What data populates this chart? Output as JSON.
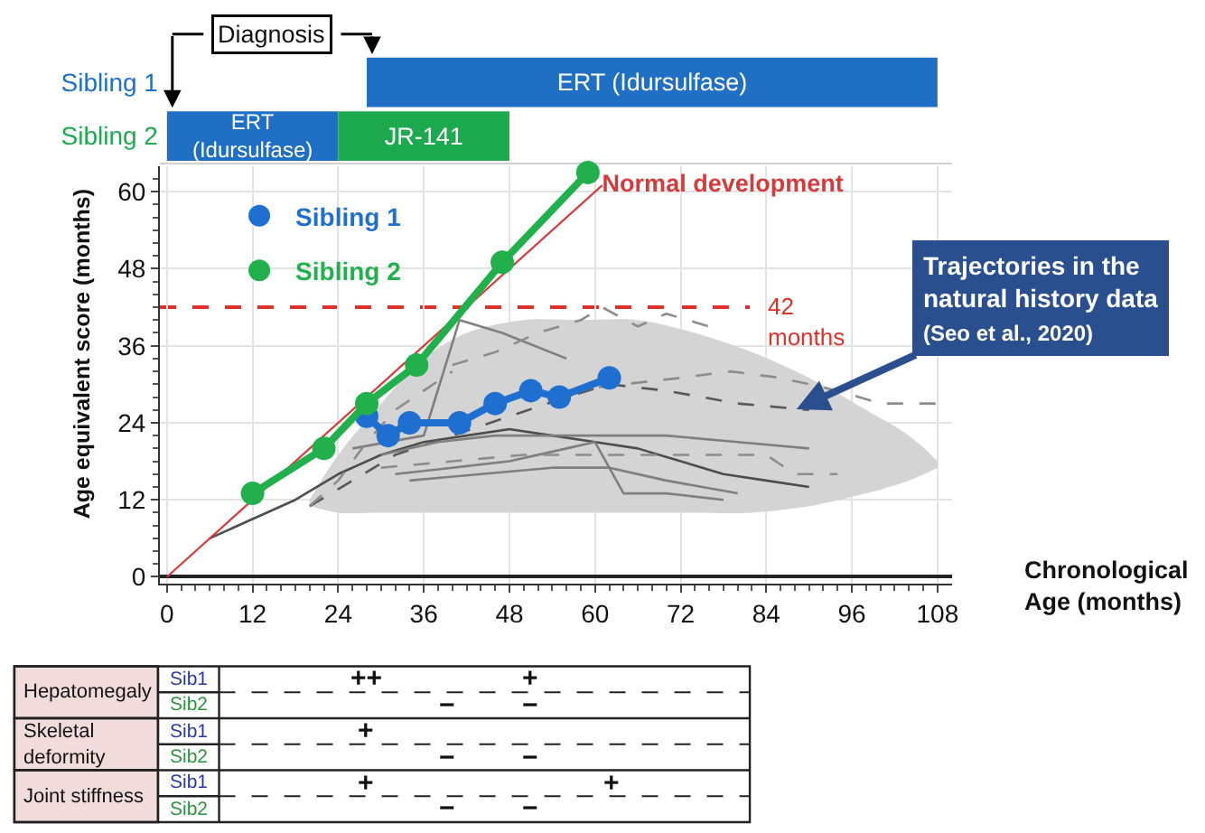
{
  "chart_data": [
    {
      "type": "bar",
      "orientation": "horizontal",
      "categories": [
        "Sibling 1",
        "Sibling 2"
      ],
      "series": [
        {
          "name": "ERT (Idursulfase)",
          "color": "#1f6fc5",
          "values": [
            80,
            24
          ],
          "base": [
            28,
            0
          ]
        },
        {
          "name": "JR-141",
          "color": "#1daa4f",
          "values": [
            null,
            24
          ],
          "base": [
            null,
            24
          ]
        }
      ],
      "xlim": [
        -1,
        110
      ],
      "tick_labels": "y",
      "annotations": [
        "Diagnosis"
      ]
    },
    {
      "type": "line",
      "xlabel": "Chronological Age (months)",
      "ylabel": "Age equivalent score (months)",
      "xlim": [
        -1,
        110
      ],
      "ylim": [
        -1,
        64
      ],
      "xticks": [
        0,
        {
          "value": 2,
          "label": null
        },
        {
          "value": 4,
          "label": null
        },
        {
          "value": 6,
          "label": null
        },
        {
          "value": 8,
          "label": null
        },
        {
          "value": 10,
          "label": null
        },
        12,
        {
          "value": 14,
          "label": null
        },
        {
          "value": 16,
          "label": null
        },
        {
          "value": 18,
          "label": null
        },
        {
          "value": 20,
          "label": null
        },
        {
          "value": 22,
          "label": null
        },
        24,
        {
          "value": 26,
          "label": null
        },
        {
          "value": 28,
          "label": null
        },
        {
          "value": 30,
          "label": null
        },
        {
          "value": 32,
          "label": null
        },
        {
          "value": 34,
          "label": null
        },
        36,
        {
          "value": 38,
          "label": null
        },
        {
          "value": 40,
          "label": null
        },
        {
          "value": 42,
          "label": null
        },
        {
          "value": 44,
          "label": null
        },
        {
          "value": 46,
          "label": null
        },
        48,
        {
          "value": 50,
          "label": null
        },
        {
          "value": 52,
          "label": null
        },
        {
          "value": 54,
          "label": null
        },
        {
          "value": 56,
          "label": null
        },
        {
          "value": 58,
          "label": null
        },
        60,
        {
          "value": 62,
          "label": null
        },
        {
          "value": 64,
          "label": null
        },
        {
          "value": 66,
          "label": null
        },
        {
          "value": 68,
          "label": null
        },
        {
          "value": 70,
          "label": null
        },
        72,
        {
          "value": 74,
          "label": null
        },
        {
          "value": 76,
          "label": null
        },
        {
          "value": 78,
          "label": null
        },
        {
          "value": 80,
          "label": null
        },
        {
          "value": 82,
          "label": null
        },
        84,
        {
          "value": 86,
          "label": null
        },
        {
          "value": 88,
          "label": null
        },
        {
          "value": 90,
          "label": null
        },
        {
          "value": 92,
          "label": null
        },
        {
          "value": 94,
          "label": null
        },
        96,
        {
          "value": 98,
          "label": null
        },
        {
          "value": 100,
          "label": null
        },
        {
          "value": 102,
          "label": null
        },
        {
          "value": 104,
          "label": null
        },
        {
          "value": 106,
          "label": null
        },
        108
      ],
      "yticks": [
        0,
        {
          "value": 2,
          "label": null
        },
        {
          "value": 4,
          "label": null
        },
        {
          "value": 6,
          "label": null
        },
        {
          "value": 8,
          "label": null
        },
        {
          "value": 10,
          "label": null
        },
        12,
        {
          "value": 14,
          "label": null
        },
        {
          "value": 16,
          "label": null
        },
        {
          "value": 18,
          "label": null
        },
        {
          "value": 20,
          "label": null
        },
        {
          "value": 22,
          "label": null
        },
        24,
        {
          "value": 26,
          "label": null
        },
        {
          "value": 28,
          "label": null
        },
        {
          "value": 30,
          "label": null
        },
        {
          "value": 32,
          "label": null
        },
        {
          "value": 34,
          "label": null
        },
        36,
        {
          "value": 38,
          "label": null
        },
        {
          "value": 40,
          "label": null
        },
        {
          "value": 42,
          "label": null
        },
        {
          "value": 44,
          "label": null
        },
        {
          "value": 46,
          "label": null
        },
        48,
        {
          "value": 50,
          "label": null
        },
        {
          "value": 52,
          "label": null
        },
        {
          "value": 54,
          "label": null
        },
        {
          "value": 56,
          "label": null
        },
        {
          "value": 58,
          "label": null
        },
        60,
        {
          "value": 62,
          "label": null
        }
      ],
      "grid": true,
      "legend": "top left",
      "marker": "none",
      "line_style": "solid",
      "series": [
        {
          "color": "#d4d4d4",
          "x": [
            20,
            24,
            30,
            36,
            42,
            50,
            58,
            66,
            74,
            82,
            90,
            98,
            104,
            108
          ],
          "values": [
            null,
            null,
            null,
            null,
            null,
            null,
            null,
            null,
            null,
            null,
            null,
            null,
            null,
            null
          ],
          "lower": [
            11,
            10,
            10,
            10,
            10,
            10,
            10,
            10,
            10,
            10,
            11,
            13,
            15,
            17
          ],
          "upper": [
            12,
            19,
            27,
            34,
            38,
            40,
            40,
            40,
            38,
            35,
            31,
            26,
            22,
            18
          ]
        },
        {
          "color": "#7f7f7f",
          "x": [
            26,
            36,
            41,
            47,
            56
          ],
          "values": [
            20,
            22,
            40,
            38,
            34
          ]
        },
        {
          "color": "#4d4d4d",
          "x": [
            6,
            12,
            18,
            24,
            30,
            36,
            42,
            48,
            54,
            60,
            66,
            72,
            78,
            84,
            90
          ],
          "values": [
            6,
            9,
            12,
            16,
            19,
            21,
            22,
            23,
            22,
            21,
            20,
            18,
            16,
            15,
            14
          ]
        },
        {
          "color": "#595959",
          "line_style": "dashed",
          "x": [
            20,
            26,
            32,
            40,
            48,
            56,
            62,
            70,
            80,
            90
          ],
          "values": [
            11,
            15,
            19,
            22,
            25,
            28,
            30,
            29,
            27,
            26
          ]
        },
        {
          "color": "#8c8c8c",
          "line_style": "dashed",
          "x": [
            40,
            46,
            52,
            58,
            61,
            66,
            70,
            76
          ],
          "values": [
            33,
            35,
            38,
            40,
            42,
            39,
            41,
            39
          ]
        },
        {
          "color": "#8c8c8c",
          "line_style": "dashed",
          "x": [
            56,
            64,
            72,
            79,
            86,
            94,
            100,
            108
          ],
          "values": [
            29,
            30,
            31,
            32,
            31,
            29,
            27,
            27
          ]
        },
        {
          "color": "#7f7f7f",
          "x": [
            30,
            38,
            46,
            54,
            62,
            70,
            80,
            90
          ],
          "values": [
            19,
            21,
            22,
            22,
            22,
            22,
            21,
            20
          ]
        },
        {
          "color": "#7f7f7f",
          "x": [
            32,
            40,
            48,
            56,
            60,
            64,
            70,
            78
          ],
          "values": [
            16,
            17,
            18,
            20,
            21,
            13,
            13,
            12
          ]
        },
        {
          "color": "#8c8c8c",
          "line_style": "dashed",
          "x": [
            30,
            40,
            50,
            60,
            70,
            80,
            84,
            88,
            94
          ],
          "values": [
            17,
            18,
            19,
            19,
            19,
            19,
            19,
            16,
            16
          ]
        },
        {
          "color": "#8c8c8c",
          "line_style": "dashed",
          "x": [
            20,
            24,
            28,
            32,
            36,
            40
          ],
          "values": [
            11,
            15,
            21,
            26,
            29,
            32
          ]
        },
        {
          "color": "#7f7f7f",
          "x": [
            34,
            44,
            54,
            62,
            70,
            80
          ],
          "values": [
            15,
            16,
            17,
            17,
            15,
            13
          ]
        },
        {
          "name": "Normal development",
          "color": "#d63b3b",
          "x": [
            0,
            61
          ],
          "values": [
            0,
            61
          ]
        },
        {
          "name": "Sibling 1",
          "color": "#1f6fd0",
          "marker": "circle",
          "x": [
            28,
            31,
            34,
            41,
            46,
            51,
            55,
            62
          ],
          "values": [
            25,
            22,
            24,
            24,
            27,
            29,
            28,
            31
          ]
        },
        {
          "name": "Sibling 2",
          "color": "#21b04b",
          "marker": "circle",
          "x": [
            12,
            22,
            28,
            35,
            47,
            59
          ],
          "values": [
            13,
            20,
            27,
            33,
            49,
            63
          ]
        }
      ],
      "ref_lines": [
        {
          "axis": "y",
          "value": 42,
          "label": "42 months",
          "color": "#e0302a",
          "line_style": "dashed"
        }
      ],
      "annotations": [
        {
          "text": "Trajectories in the natural history data (Seo et al., 2020)",
          "x": 88,
          "y": 26
        }
      ]
    },
    {
      "type": "other",
      "categories": [
        null,
        null,
        null,
        null
      ],
      "y_categories": [
        "Sib1",
        "Sib2",
        "Sib1",
        "Sib2",
        "Sib1",
        "Sib2"
      ],
      "y2_categories": [
        "Hepatomegaly",
        null,
        "Skeletal deformity",
        null,
        "Joint stiffness",
        null
      ],
      "colors": [
        "#2b3a9e",
        "#2e9440",
        "#2b3a9e",
        "#2e9440",
        "#2b3a9e",
        "#2e9440"
      ],
      "color": "#f2dcdb",
      "cell_labels": [
        [
          "++",
          null,
          "+",
          null
        ],
        [
          null,
          "−",
          "−",
          null
        ],
        [
          "+",
          null,
          null,
          null
        ],
        [
          null,
          "−",
          "−",
          null
        ],
        [
          "+",
          null,
          null,
          "+"
        ],
        [
          null,
          "−",
          "−",
          null
        ]
      ]
    }
  ]
}
